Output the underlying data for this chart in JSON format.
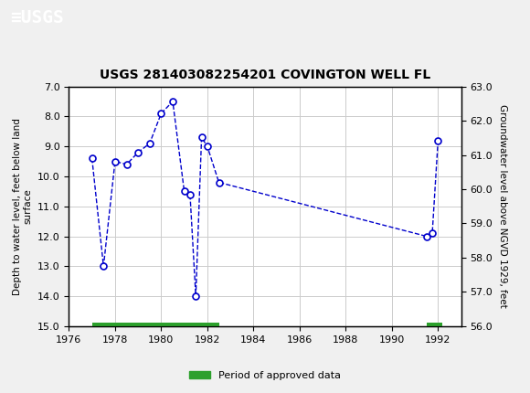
{
  "title": "USGS 281403082254201 COVINGTON WELL FL",
  "xlabel": "",
  "ylabel_left": "Depth to water level, feet below land\nsurface",
  "ylabel_right": "Groundwater level above NGVD 1929, feet",
  "header_color": "#1a6b3c",
  "header_text": "USGS",
  "data_x": [
    1977.0,
    1977.5,
    1978.0,
    1978.5,
    1979.0,
    1979.5,
    1980.0,
    1980.5,
    1981.0,
    1981.25,
    1981.5,
    1981.75,
    1982.0,
    1982.5,
    1991.5,
    1991.75,
    1992.0
  ],
  "data_y": [
    9.4,
    13.0,
    9.5,
    9.6,
    9.2,
    8.9,
    7.9,
    7.5,
    10.5,
    10.6,
    14.0,
    8.7,
    9.0,
    10.2,
    12.0,
    11.9,
    8.8
  ],
  "left_ylim": [
    15.0,
    7.0
  ],
  "right_ylim": [
    56.0,
    63.0
  ],
  "xlim": [
    1976,
    1993
  ],
  "xticks": [
    1976,
    1978,
    1980,
    1982,
    1984,
    1986,
    1988,
    1990,
    1992
  ],
  "left_yticks": [
    7.0,
    8.0,
    9.0,
    10.0,
    11.0,
    12.0,
    13.0,
    14.0,
    15.0
  ],
  "right_yticks": [
    56.0,
    57.0,
    58.0,
    59.0,
    60.0,
    61.0,
    62.0,
    63.0
  ],
  "line_color": "#0000cc",
  "marker_color": "#0000cc",
  "marker_face": "white",
  "grid_color": "#cccccc",
  "bg_color": "#f0f0f0",
  "plot_bg": "#ffffff",
  "approved_bars": [
    {
      "xstart": 1977.0,
      "xend": 1982.5,
      "y": 15.0
    },
    {
      "xstart": 1991.5,
      "xend": 1992.2,
      "y": 15.0
    }
  ],
  "approved_color": "#2ca02c",
  "approved_bar_height": 0.25,
  "legend_label": "Period of approved data"
}
